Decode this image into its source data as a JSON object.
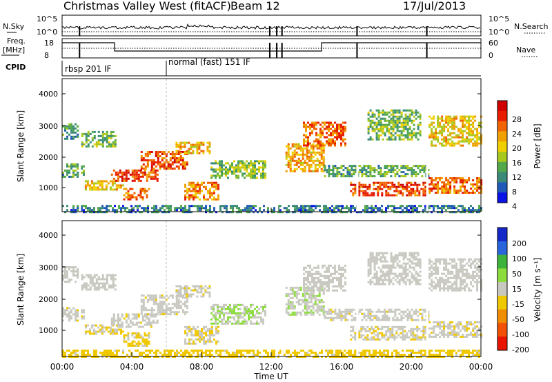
{
  "header": {
    "radar": "Christmas Valley West (fitACF)",
    "beam": "Beam 12",
    "date": "17/Jul/2013"
  },
  "nsky_panel": {
    "left_label": "N.Sky",
    "right_label": "N.Search",
    "left_ticks": [
      "10^5",
      "10^0"
    ],
    "right_ticks": [
      "10^5",
      "10^0"
    ]
  },
  "freq_panel": {
    "left_label_1": "Freq.",
    "left_label_2": "[MHz]",
    "right_label": "Nave",
    "left_ticks": [
      "18",
      "8"
    ],
    "right_ticks": [
      "60",
      "0"
    ]
  },
  "cpid_panel": {
    "label": "CPID",
    "modes": [
      "rbsp 201 IF",
      "normal (fast) 151 IF"
    ]
  },
  "power_panel": {
    "ylabel": "Slant Range [km]",
    "yticks": [
      "4000",
      "3000",
      "2000",
      "1000"
    ],
    "colorbar_label": "Power [dB]",
    "colorbar_ticks": [
      "28",
      "24",
      "20",
      "16",
      "12",
      "8",
      "4"
    ],
    "colors": [
      "#0a14e6",
      "#1f5ab8",
      "#3a8a7a",
      "#52a84a",
      "#a8c81e",
      "#f0d000",
      "#f0a000",
      "#f06400",
      "#e81e00",
      "#d00000"
    ]
  },
  "velocity_panel": {
    "ylabel": "Slant Range [km]",
    "yticks": [
      "4000",
      "3000",
      "2000",
      "1000"
    ],
    "colorbar_label": "Velocity [m s⁻¹]",
    "colorbar_ticks": [
      "200",
      "100",
      "50",
      "15",
      "-15",
      "-50",
      "-100",
      "-200"
    ],
    "colors": [
      "#1428c8",
      "#2864dc",
      "#3cb43c",
      "#8cdc3c",
      "#c8c8c0",
      "#f0c800",
      "#f08c00",
      "#f05000",
      "#e81400"
    ]
  },
  "xaxis": {
    "label": "Time UT",
    "ticks": [
      "00:00",
      "04:00",
      "08:00",
      "12:00",
      "16:00",
      "20:00",
      "00:00"
    ]
  },
  "chart_data": {
    "type": "heatmap",
    "title": "Christmas Valley West (fitACF) Beam 12 17/Jul/2013",
    "xlabel": "Time UT",
    "ylabel": "Slant Range [km]",
    "xlim": [
      "00:00",
      "24:00"
    ],
    "ylim": [
      180,
      4500
    ],
    "power_clim": [
      0,
      32
    ],
    "velocity_clim": [
      -250,
      250
    ],
    "scatter_regions": [
      {
        "t0": 0.0,
        "t1": 1.0,
        "r0": 2550,
        "r1": 3050,
        "power": 9,
        "velocity": -5
      },
      {
        "t0": 0.0,
        "t1": 1.3,
        "r0": 1300,
        "r1": 1750,
        "power": 11,
        "velocity": -10
      },
      {
        "t0": 1.1,
        "t1": 3.0,
        "r0": 2300,
        "r1": 2800,
        "power": 12,
        "velocity": -5
      },
      {
        "t0": 1.3,
        "t1": 3.5,
        "r0": 900,
        "r1": 1200,
        "power": 18,
        "velocity": -30
      },
      {
        "t0": 2.8,
        "t1": 5.5,
        "r0": 1150,
        "r1": 1550,
        "power": 26,
        "velocity": -10
      },
      {
        "t0": 4.5,
        "t1": 7.2,
        "r0": 1550,
        "r1": 2150,
        "power": 25,
        "velocity": -10
      },
      {
        "t0": 6.5,
        "t1": 8.5,
        "r0": 2100,
        "r1": 2450,
        "power": 20,
        "velocity": -15
      },
      {
        "t0": 3.5,
        "t1": 5.0,
        "r0": 550,
        "r1": 950,
        "power": 23,
        "velocity": -40
      },
      {
        "t0": 7.0,
        "t1": 9.0,
        "r0": 600,
        "r1": 1150,
        "power": 22,
        "velocity": -20
      },
      {
        "t0": 8.5,
        "t1": 11.6,
        "r0": 1250,
        "r1": 1850,
        "power": 13,
        "velocity": 25
      },
      {
        "t0": 0.0,
        "t1": 24.0,
        "r0": 180,
        "r1": 400,
        "power": 7,
        "velocity": -45
      },
      {
        "t0": 12.8,
        "t1": 15.0,
        "r0": 1500,
        "r1": 2400,
        "power": 20,
        "velocity": 20
      },
      {
        "t0": 13.8,
        "t1": 16.2,
        "r0": 2300,
        "r1": 3100,
        "power": 24,
        "velocity": -5
      },
      {
        "t0": 15.0,
        "t1": 21.0,
        "r0": 1350,
        "r1": 1700,
        "power": 11,
        "velocity": -10
      },
      {
        "t0": 16.5,
        "t1": 20.8,
        "r0": 700,
        "r1": 1150,
        "power": 26,
        "velocity": -20
      },
      {
        "t0": 17.5,
        "t1": 20.5,
        "r0": 2500,
        "r1": 3500,
        "power": 12,
        "velocity": -5
      },
      {
        "t0": 21.0,
        "t1": 24.0,
        "r0": 2300,
        "r1": 3300,
        "power": 18,
        "velocity": -5
      },
      {
        "t0": 21.0,
        "t1": 24.0,
        "r0": 800,
        "r1": 1300,
        "power": 24,
        "velocity": -15
      }
    ],
    "data_gaps_ut": [
      1.0,
      11.9,
      12.3,
      12.6,
      16.9,
      20.9
    ]
  }
}
